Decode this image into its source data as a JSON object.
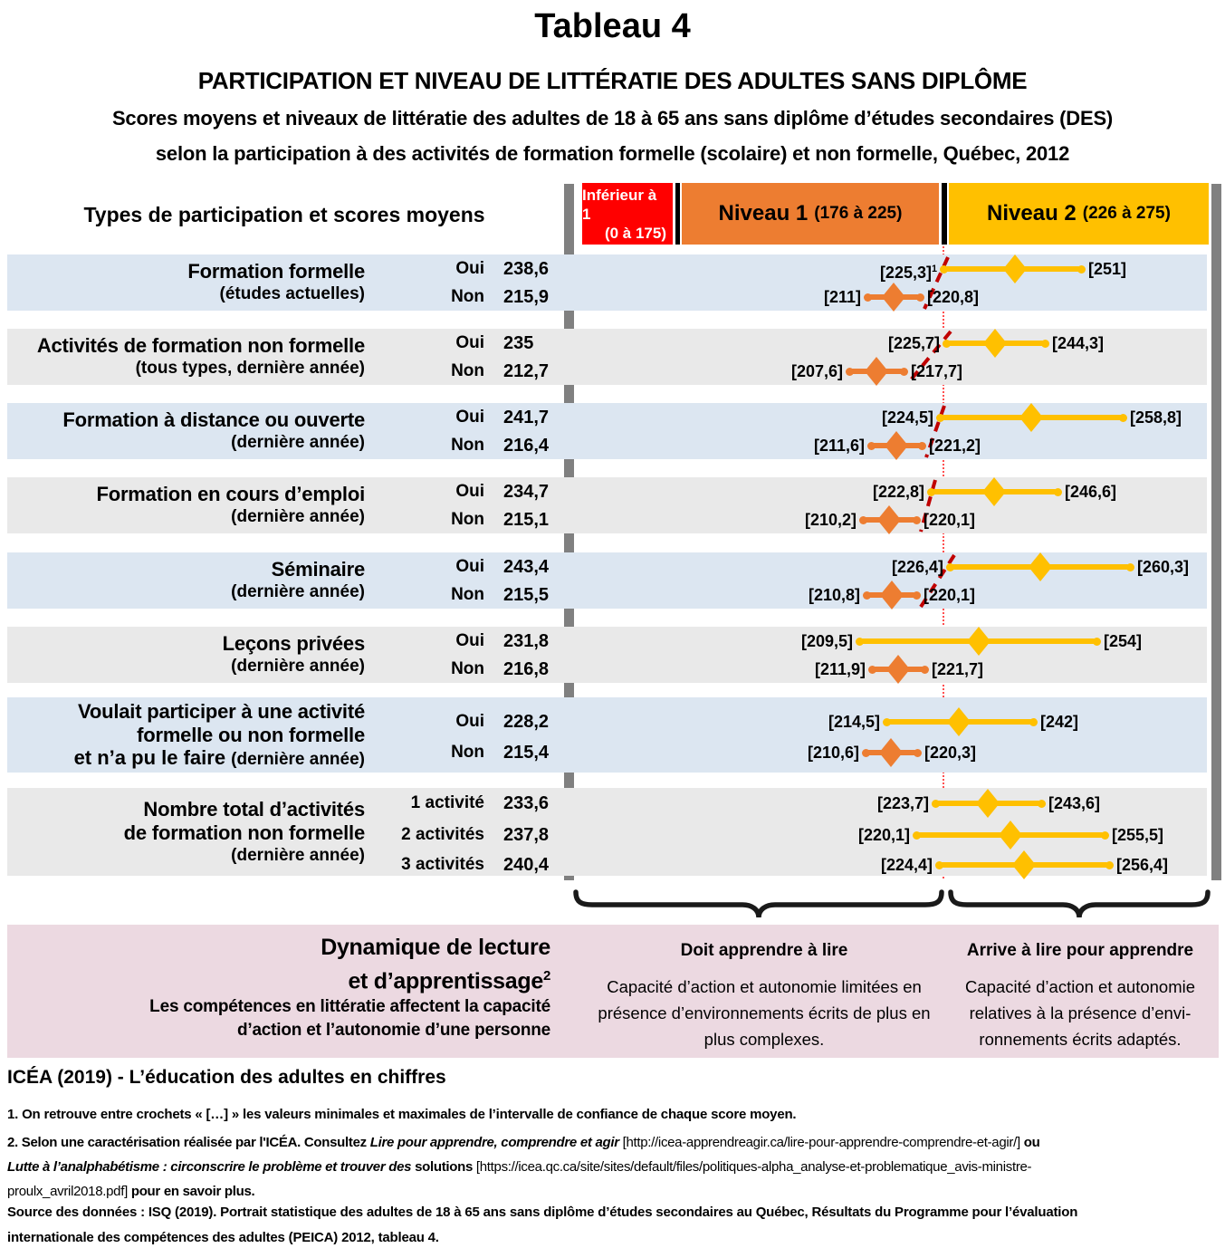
{
  "page": {
    "table_header": "Types de participation et scores moyens"
  },
  "colors": {
    "below1": "#FF0000",
    "level1_series": "#ED7D31",
    "level2_series": "#FFC000",
    "row_blue": "#DCE6F1",
    "row_gray": "#E9E9E9",
    "boundary_dash": "#C00000",
    "boundary_dotted": "#FF5050",
    "side_bar": "#808080",
    "panel_pink": "#ECD9E1",
    "divider_black": "#000000"
  },
  "chart_data": {
    "type": "scatter",
    "title": "Tableau 4",
    "subtitle": "PARTICIPATION ET NIVEAU DE LITTÉRATIE DES ADULTES SANS DIPLÔME",
    "description_lines": [
      "Scores moyens et niveaux de littératie des adultes de 18 à 65 ans sans diplôme d’études secondaires (DES)",
      "selon la participation à des activités de formation formelle (scolaire) et non formelle, Québec, 2012"
    ],
    "x_axis": {
      "min": 176,
      "max": 275,
      "level_boundary": 225.5,
      "grid": false
    },
    "legend_position": "none",
    "levels": [
      {
        "name": "Inférieur à 1",
        "range_label": "(0 à 175)",
        "score_min": 0,
        "score_max": 175,
        "color": "#FF0000",
        "text_color": "#FFFFFF"
      },
      {
        "name": "Niveau 1",
        "range_label": "(176 à 225)",
        "score_min": 176,
        "score_max": 225,
        "color": "#ED7D31",
        "text_color": "#000000"
      },
      {
        "name": "Niveau 2",
        "range_label": "(226 à 275)",
        "score_min": 226,
        "score_max": 275,
        "color": "#FFC000",
        "text_color": "#000000"
      }
    ],
    "rows": [
      {
        "category_lines": [
          "Formation formelle"
        ],
        "category_sub": "(études actuelles)",
        "points": [
          {
            "group": "Oui",
            "mean": 238.6,
            "mean_label": "238,6",
            "ci": [
              225.3,
              251
            ],
            "ci_low_label": "[225,3]",
            "ci_low_sup": "1",
            "ci_high_label": "[251]",
            "level": 2
          },
          {
            "group": "Non",
            "mean": 215.9,
            "mean_label": "215,9",
            "ci": [
              211,
              220.8
            ],
            "ci_low_label": "[211]",
            "ci_high_label": "[220,8]",
            "level": 1
          }
        ]
      },
      {
        "category_lines": [
          "Activités de formation non formelle"
        ],
        "category_sub": "(tous types, dernière année)",
        "points": [
          {
            "group": "Oui",
            "mean": 235,
            "mean_label": "235",
            "ci": [
              225.7,
              244.3
            ],
            "ci_low_label": "[225,7]",
            "ci_high_label": "[244,3]",
            "level": 2
          },
          {
            "group": "Non",
            "mean": 212.7,
            "mean_label": "212,7",
            "ci": [
              207.6,
              217.7
            ],
            "ci_low_label": "[207,6]",
            "ci_high_label": "[217,7]",
            "level": 1
          }
        ]
      },
      {
        "category_lines": [
          "Formation à distance ou ouverte"
        ],
        "category_sub": "(dernière année)",
        "points": [
          {
            "group": "Oui",
            "mean": 241.7,
            "mean_label": "241,7",
            "ci": [
              224.5,
              258.8
            ],
            "ci_low_label": "[224,5]",
            "ci_high_label": "[258,8]",
            "level": 2
          },
          {
            "group": "Non",
            "mean": 216.4,
            "mean_label": "216,4",
            "ci": [
              211.6,
              221.2
            ],
            "ci_low_label": "[211,6]",
            "ci_high_label": "[221,2]",
            "level": 1
          }
        ]
      },
      {
        "category_lines": [
          "Formation en cours d’emploi"
        ],
        "category_sub": "(dernière année)",
        "points": [
          {
            "group": "Oui",
            "mean": 234.7,
            "mean_label": "234,7",
            "ci": [
              222.8,
              246.6
            ],
            "ci_low_label": "[222,8]",
            "ci_high_label": "[246,6]",
            "level": 2
          },
          {
            "group": "Non",
            "mean": 215.1,
            "mean_label": "215,1",
            "ci": [
              210.2,
              220.1
            ],
            "ci_low_label": "[210,2]",
            "ci_high_label": "[220,1]",
            "level": 1
          }
        ]
      },
      {
        "category_lines": [
          "Séminaire"
        ],
        "category_sub": "(dernière année)",
        "points": [
          {
            "group": "Oui",
            "mean": 243.4,
            "mean_label": "243,4",
            "ci": [
              226.4,
              260.3
            ],
            "ci_low_label": "[226,4]",
            "ci_high_label": "[260,3]",
            "level": 2
          },
          {
            "group": "Non",
            "mean": 215.5,
            "mean_label": "215,5",
            "ci": [
              210.8,
              220.1
            ],
            "ci_low_label": "[210,8]",
            "ci_high_label": "[220,1]",
            "level": 1
          }
        ]
      },
      {
        "category_lines": [
          "Leçons privées"
        ],
        "category_sub": "(dernière année)",
        "points": [
          {
            "group": "Oui",
            "mean": 231.8,
            "mean_label": "231,8",
            "ci": [
              209.5,
              254
            ],
            "ci_low_label": "[209,5]",
            "ci_high_label": "[254]",
            "level": 2
          },
          {
            "group": "Non",
            "mean": 216.8,
            "mean_label": "216,8",
            "ci": [
              211.9,
              221.7
            ],
            "ci_low_label": "[211,9]",
            "ci_high_label": "[221,7]",
            "level": 1
          }
        ]
      },
      {
        "category_lines": [
          "Voulait participer à une activité",
          "formelle ou non formelle"
        ],
        "category_sub_prefix": "et n’a pu le faire ",
        "category_sub": "(dernière année)",
        "points": [
          {
            "group": "Oui",
            "mean": 228.2,
            "mean_label": "228,2",
            "ci": [
              214.5,
              242
            ],
            "ci_low_label": "[214,5]",
            "ci_high_label": "[242]",
            "level": 2
          },
          {
            "group": "Non",
            "mean": 215.4,
            "mean_label": "215,4",
            "ci": [
              210.6,
              220.3
            ],
            "ci_low_label": "[210,6]",
            "ci_high_label": "[220,3]",
            "level": 1
          }
        ]
      },
      {
        "category_lines": [
          "Nombre total d’activités",
          "de formation non formelle"
        ],
        "category_sub": "(dernière année)",
        "points": [
          {
            "group": "1 activité",
            "mean": 233.6,
            "mean_label": "233,6",
            "ci": [
              223.7,
              243.6
            ],
            "ci_low_label": "[223,7]",
            "ci_high_label": "[243,6]",
            "level": 2
          },
          {
            "group": "2 activités",
            "mean": 237.8,
            "mean_label": "237,8",
            "ci": [
              220.1,
              255.5
            ],
            "ci_low_label": "[220,1]",
            "ci_high_label": "[255,5]",
            "level": 2
          },
          {
            "group": "3 activités",
            "mean": 240.4,
            "mean_label": "240,4",
            "ci": [
              224.4,
              256.4
            ],
            "ci_low_label": "[224,4]",
            "ci_high_label": "[256,4]",
            "level": 2
          }
        ]
      }
    ]
  },
  "dynamics": {
    "heading_lines": [
      "Dynamique de lecture",
      "et d’apprentissage"
    ],
    "heading_sup": "2",
    "subtext_lines": [
      "Les compétences en littératie affectent la capacité",
      "d’action et l’autonomie d’une personne"
    ],
    "level1": {
      "title": "Doit apprendre à lire",
      "body_lines": [
        "Capacité d’action et autonomie limitées en",
        "présence d’environnements écrits de plus en",
        "plus complexes."
      ]
    },
    "level2": {
      "title": "Arrive à lire pour apprendre",
      "body_lines": [
        "Capacité d’action et autonomie",
        "relatives à la présence d’envi-",
        "ronnements écrits adaptés."
      ]
    }
  },
  "footer": {
    "heading": "ICÉA (2019) - L’éducation des adultes en chiffres",
    "note1": "1. On retrouve entre crochets « […] » les valeurs minimales et maximales de l’intervalle de confiance de chaque score moyen.",
    "note2_segments": [
      {
        "t": "2. Selon une caractérisation réalisée par l'ICÉA. Consultez ",
        "s": "b"
      },
      {
        "t": "Lire pour apprendre, comprendre et agir",
        "s": "bi"
      },
      {
        "t": " [http://icea-apprendreagir.ca/lire-pour-apprendre-comprendre-et-agir/] ",
        "s": "r"
      },
      {
        "t": "ou",
        "s": "b"
      },
      {
        "t": "\n",
        "s": "r"
      },
      {
        "t": "Lutte à l’analphabétisme : circonscrire le problème et trouver des ",
        "s": "bi"
      },
      {
        "t": "solutions",
        "s": "b"
      },
      {
        "t": " [https://icea.qc.ca/site/sites/default/files/politiques-alpha_analyse-et-problematique_avis-ministre-",
        "s": "r"
      },
      {
        "t": "\n",
        "s": "r"
      },
      {
        "t": "proulx_avril2018.pdf] ",
        "s": "r"
      },
      {
        "t": "pour en savoir plus.",
        "s": "b"
      }
    ],
    "source_lines": [
      "Source des données : ISQ (2019). Portrait statistique des adultes de 18 à 65 ans sans diplôme d’études secondaires au Québec, Résultats du Programme pour l’évaluation",
      "internationale des compétences des adultes (PEICA) 2012, tableau 4."
    ]
  }
}
